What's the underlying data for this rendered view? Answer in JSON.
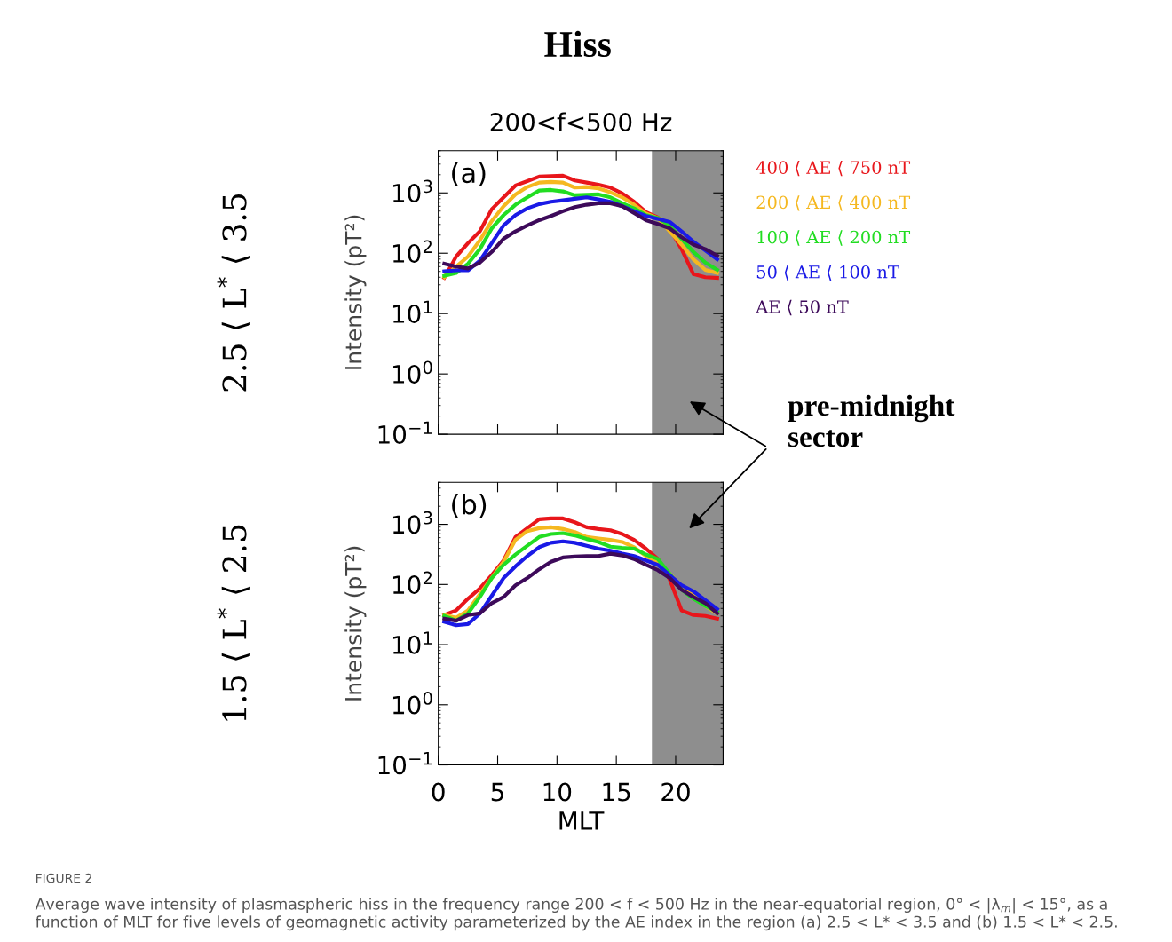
{
  "chart_data": [
    {
      "type": "line",
      "title": "Hiss",
      "subtitle": "200<f<500 Hz",
      "ylabel": "Intensity (pT²)",
      "x": [
        0.5,
        1.5,
        2.5,
        3.5,
        4.5,
        5.5,
        6.5,
        7.5,
        8.5,
        9.5,
        10.5,
        11.5,
        12.5,
        13.5,
        14.5,
        15.5,
        16.5,
        17.5,
        18.5,
        19.5,
        20.5,
        21.5,
        22.5,
        23.5
      ],
      "series": [
        {
          "name": "400 ⟨ AE ⟨ 750 nT",
          "color": "#e8161b",
          "values": [
            39,
            88,
            147,
            231,
            537,
            843,
            1327,
            1570,
            1862,
            1900,
            1925,
            1607,
            1485,
            1371,
            1225,
            977,
            713,
            480,
            392,
            258,
            117,
            45,
            40,
            39
          ]
        },
        {
          "name": "200 ⟨ AE ⟨ 400 nT",
          "color": "#f5b820",
          "values": [
            40,
            60,
            88,
            164,
            342,
            601,
            945,
            1254,
            1485,
            1520,
            1485,
            1225,
            1254,
            1185,
            1023,
            843,
            637,
            454,
            383,
            231,
            139,
            79,
            53,
            47
          ]
        },
        {
          "name": "100 ⟨ AE ⟨ 200 nT",
          "color": "#22dd22",
          "values": [
            42,
            47,
            67,
            117,
            258,
            429,
            637,
            843,
            1094,
            1119,
            1059,
            914,
            935,
            945,
            843,
            673,
            556,
            429,
            383,
            289,
            174,
            105,
            70,
            53
          ]
        },
        {
          "name": "50 ⟨ AE ⟨ 100 nT",
          "color": "#1a1ae6",
          "values": [
            50,
            52,
            52,
            75,
            147,
            289,
            429,
            556,
            652,
            713,
            754,
            798,
            843,
            780,
            713,
            601,
            497,
            415,
            371,
            331,
            231,
            155,
            111,
            79
          ]
        },
        {
          "name": "AE ⟨ 50 nT",
          "color": "#3d0a5a",
          "values": [
            67,
            60,
            56,
            70,
            105,
            174,
            231,
            289,
            354,
            415,
            497,
            582,
            637,
            673,
            673,
            601,
            464,
            354,
            305,
            258,
            184,
            139,
            117,
            91
          ]
        }
      ],
      "log": "y",
      "xlim": [
        0,
        24
      ],
      "xticks": [
        0,
        5,
        10,
        15,
        20
      ],
      "ylim": [
        0.1,
        5000
      ],
      "yticks": [
        {
          "value": 0.1,
          "label": "10$^{−1}$"
        },
        {
          "value": 1,
          "label": "10$^{0}$"
        },
        {
          "value": 10,
          "label": "10$^{1}$"
        },
        {
          "value": 100,
          "label": "10$^{2}$"
        },
        {
          "value": 1000,
          "label": "10$^{3}$"
        }
      ],
      "tick_labels": "y",
      "legend": "right",
      "bands": [
        {
          "axis": "x",
          "from": 18,
          "to": 24,
          "color": "#8e8e8e"
        }
      ],
      "annotations": [
        "(a)",
        "2.5 ⟨ L$^{*}$ ⟨ 3.5",
        "pre-midnight\nsector"
      ]
    },
    {
      "type": "line",
      "xlabel": "MLT",
      "ylabel": "Intensity (pT²)",
      "x": [
        0.5,
        1.5,
        2.5,
        3.5,
        4.5,
        5.5,
        6.5,
        7.5,
        8.5,
        9.5,
        10.5,
        11.5,
        12.5,
        13.5,
        14.5,
        15.5,
        16.5,
        17.5,
        18.5,
        19.5,
        20.5,
        21.5,
        22.5,
        23.5
      ],
      "series": [
        {
          "color": "#e8161b",
          "values": [
            31,
            37,
            58,
            86,
            143,
            251,
            616,
            864,
            1211,
            1253,
            1253,
            1082,
            894,
            836,
            798,
            690,
            551,
            394,
            265,
            121,
            37,
            31,
            30,
            27
          ]
        },
        {
          "color": "#f5b820",
          "values": [
            31,
            28,
            37,
            69,
            128,
            238,
            551,
            772,
            864,
            894,
            836,
            747,
            616,
            583,
            551,
            509,
            417,
            297,
            232,
            151,
            91,
            65,
            44,
            33
          ]
        },
        {
          "color": "#22dd22",
          "values": [
            30,
            25,
            33,
            62,
            128,
            212,
            315,
            441,
            616,
            690,
            714,
            653,
            570,
            509,
            425,
            407,
            394,
            315,
            265,
            151,
            82,
            58,
            44,
            35
          ]
        },
        {
          "color": "#1a1ae6",
          "values": [
            24,
            21,
            22,
            33,
            65,
            128,
            200,
            297,
            417,
            493,
            521,
            493,
            441,
            394,
            364,
            325,
            297,
            251,
            212,
            143,
            97,
            77,
            55,
            39
          ]
        },
        {
          "color": "#3d0a5a",
          "values": [
            27,
            25,
            31,
            33,
            49,
            62,
            97,
            128,
            179,
            238,
            281,
            291,
            297,
            297,
            325,
            304,
            265,
            212,
            173,
            128,
            82,
            62,
            49,
            33
          ]
        }
      ],
      "log": "y",
      "xlim": [
        0,
        24
      ],
      "xticks": [
        0,
        5,
        10,
        15,
        20
      ],
      "ylim": [
        0.1,
        5000
      ],
      "yticks": [
        {
          "value": 0.1,
          "label": "10$^{−1}$"
        },
        {
          "value": 1,
          "label": "10$^{0}$"
        },
        {
          "value": 10,
          "label": "10$^{1}$"
        },
        {
          "value": 100,
          "label": "10$^{2}$"
        },
        {
          "value": 1000,
          "label": "10$^{3}$"
        }
      ],
      "bands": [
        {
          "axis": "x",
          "from": 18,
          "to": 24,
          "color": "#8e8e8e"
        }
      ],
      "annotations": [
        "(b)",
        "1.5 ⟨ L$^{*}$ ⟨ 2.5",
        "FIGURE 2",
        "Average wave intensity of plasmaspheric hiss in the frequency range 200 < f < 500 Hz in the near-equatorial region, 0° < |λ$_{m}$| < 15°, as a function of MLT for five levels of geomagnetic activity parameterized by the AE index in the region (a) 2.5 < L* < 3.5 and (b) 1.5 < L* < 2.5."
      ]
    }
  ]
}
